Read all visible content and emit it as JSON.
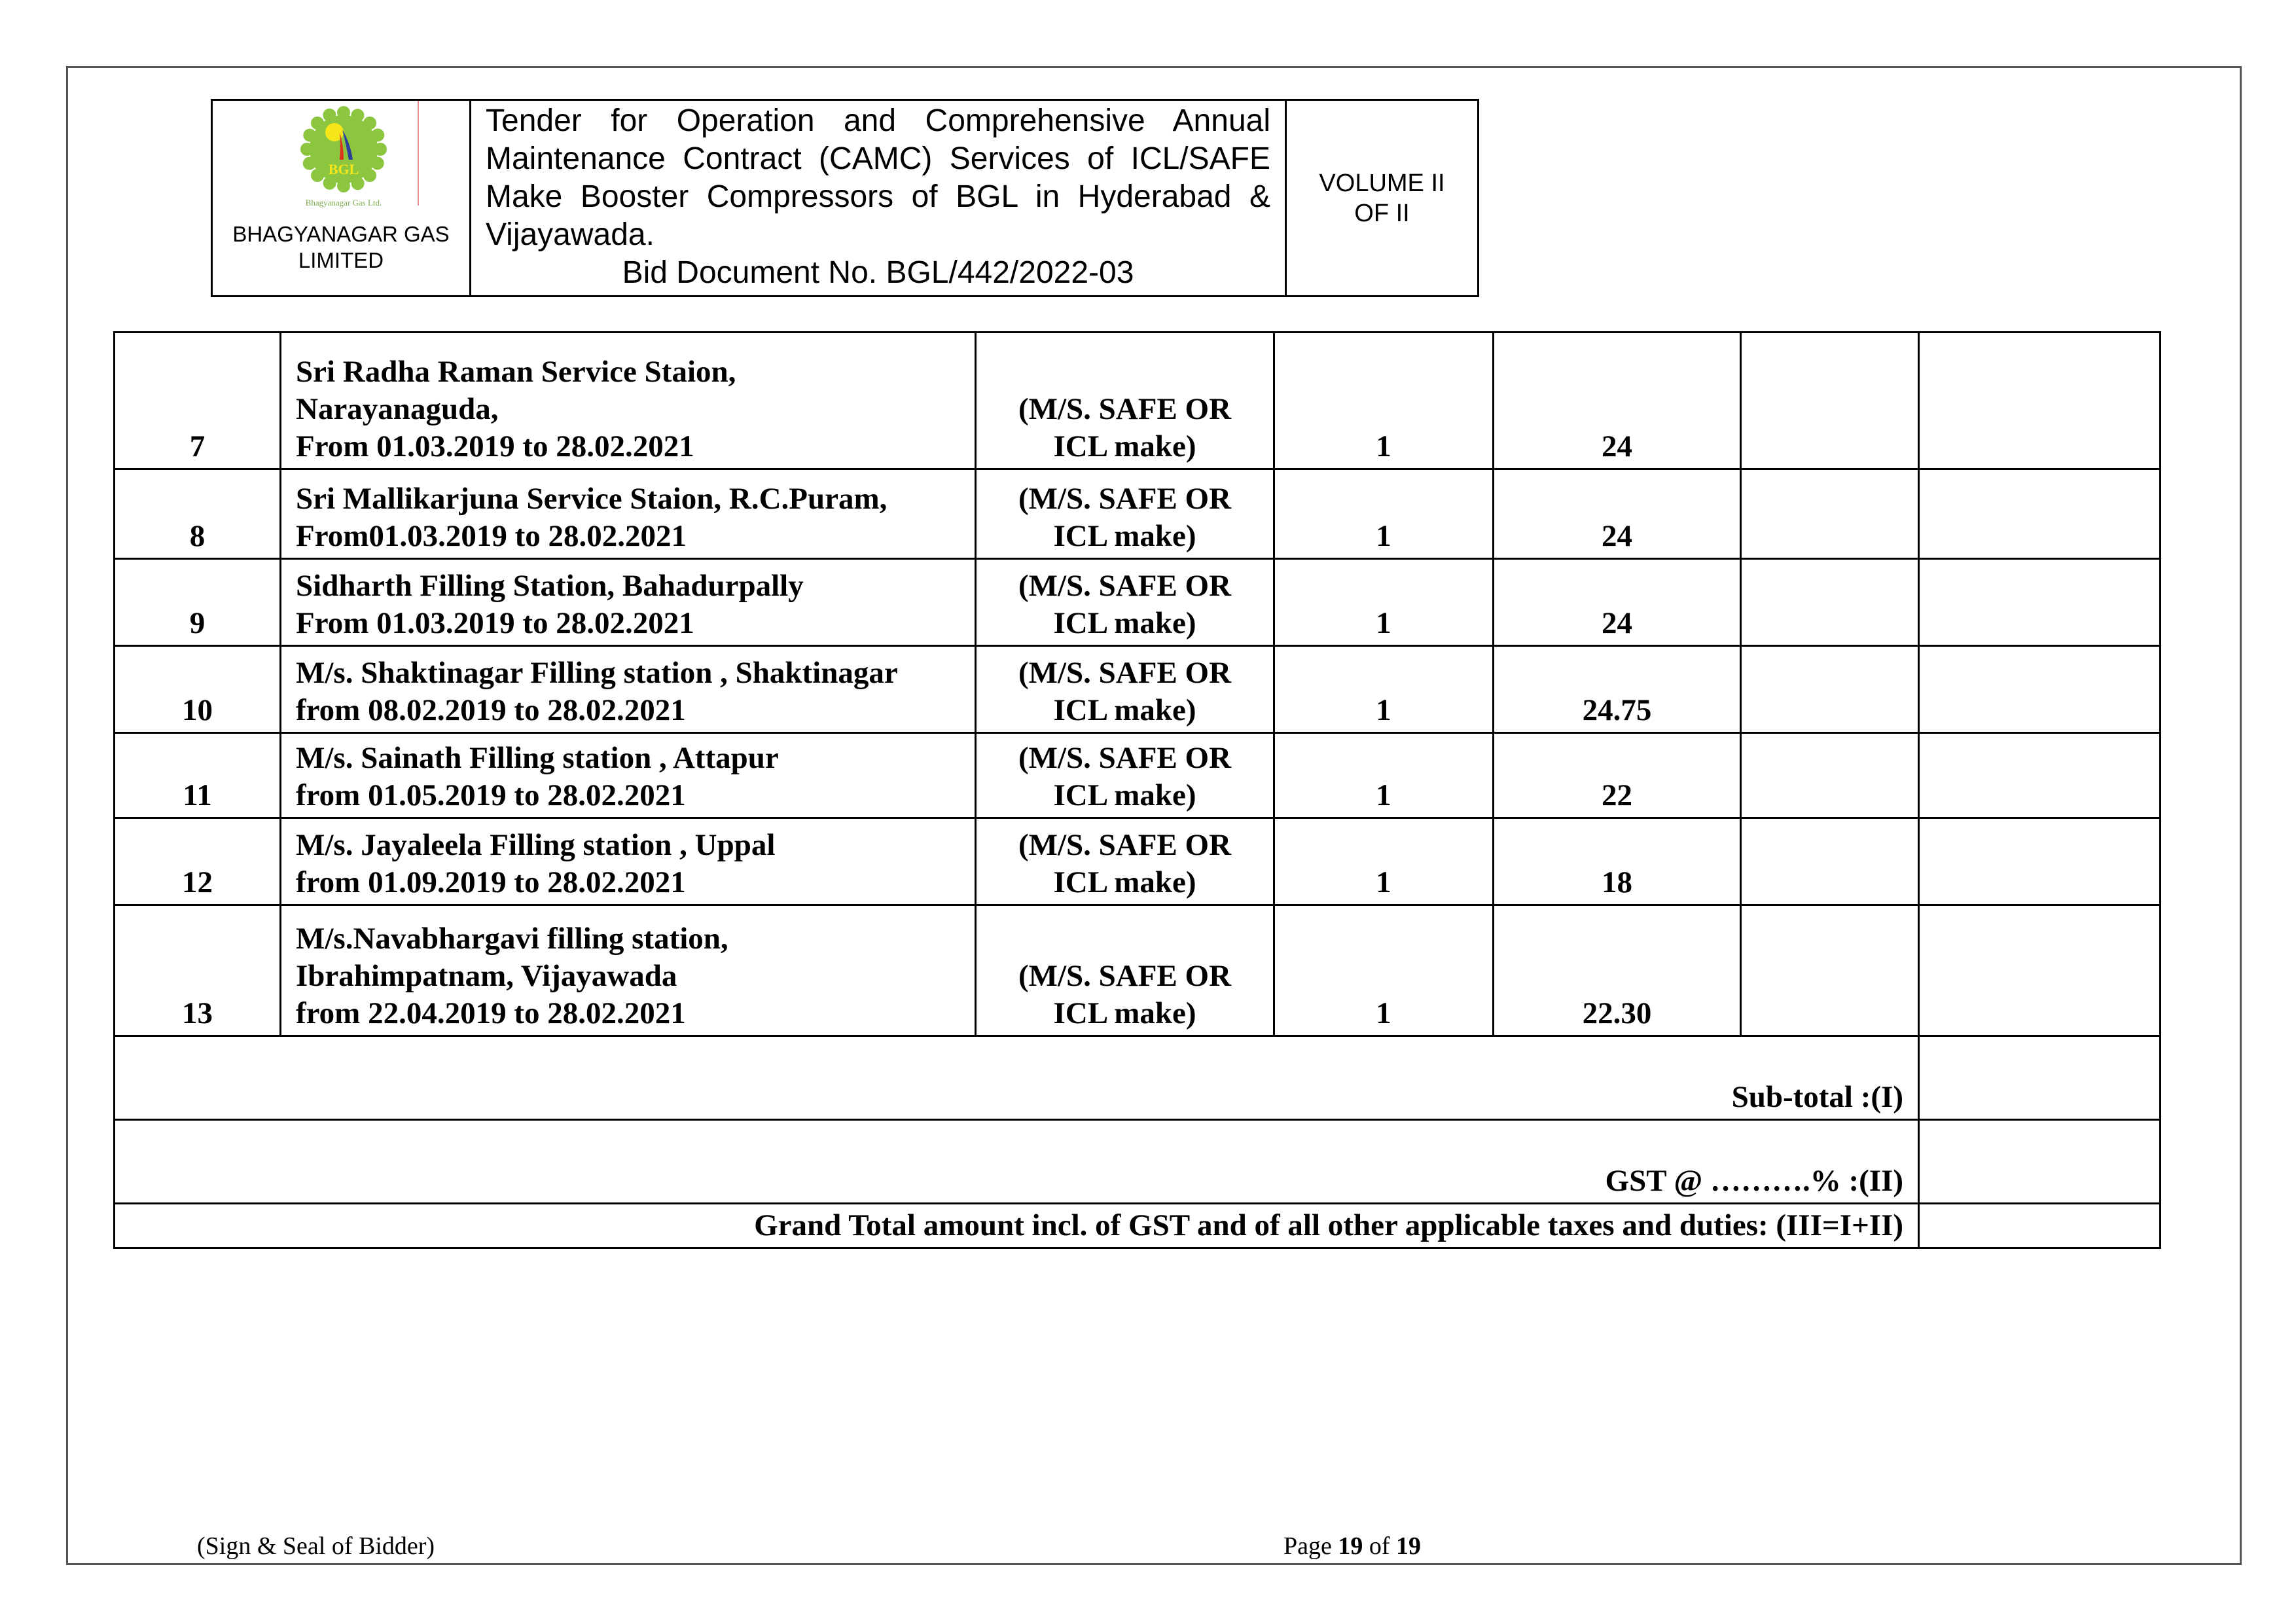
{
  "header": {
    "company": "BHAGYANAGAR GAS LIMITED",
    "logo_text": "BGL",
    "logo_caption": "Bhagyanagar Gas Ltd.",
    "title_lines": [
      "Tender for Operation and Comprehensive Annual",
      "Maintenance Contract (CAMC) Services of ICL/SAFE",
      "Make Booster Compressors of BGL in Hyderabad &",
      "Vijayawada."
    ],
    "bid_document": "Bid Document No. BGL/442/2022-03",
    "volume_line1": "VOLUME II",
    "volume_line2": "OF II"
  },
  "rows": [
    {
      "no": "7",
      "lines": [
        "Sri Radha Raman Service Staion,",
        "Narayanaguda,",
        "From 01.03.2019 to 28.02.2021"
      ],
      "make": [
        "(M/S. SAFE OR",
        "ICL make)"
      ],
      "qty": "1",
      "months": "24"
    },
    {
      "no": "8",
      "lines": [
        "Sri Mallikarjuna Service Staion, R.C.Puram,",
        "From01.03.2019 to 28.02.2021"
      ],
      "make": [
        "(M/S. SAFE OR",
        "ICL make)"
      ],
      "qty": "1",
      "months": "24"
    },
    {
      "no": "9",
      "lines": [
        "Sidharth Filling Station, Bahadurpally",
        "From 01.03.2019 to 28.02.2021"
      ],
      "make": [
        "(M/S. SAFE OR",
        "ICL make)"
      ],
      "qty": "1",
      "months": "24"
    },
    {
      "no": "10",
      "lines": [
        "M/s. Shaktinagar Filling station , Shaktinagar",
        "from 08.02.2019 to 28.02.2021"
      ],
      "make": [
        "(M/S. SAFE OR",
        "ICL make)"
      ],
      "qty": "1",
      "months": "24.75"
    },
    {
      "no": "11",
      "lines": [
        "M/s. Sainath Filling station , Attapur",
        "from 01.05.2019 to 28.02.2021"
      ],
      "make": [
        "(M/S. SAFE OR",
        "ICL make)"
      ],
      "qty": "1",
      "months": "22"
    },
    {
      "no": "12",
      "lines": [
        "M/s. Jayaleela Filling station , Uppal",
        "from 01.09.2019 to 28.02.2021"
      ],
      "make": [
        "(M/S. SAFE OR",
        "ICL make)"
      ],
      "qty": "1",
      "months": "18"
    },
    {
      "no": "13",
      "lines": [
        "M/s.Navabhargavi filling station,",
        "Ibrahimpatnam, Vijayawada",
        "from 22.04.2019 to 28.02.2021"
      ],
      "make": [
        "(M/S. SAFE OR",
        "ICL make)"
      ],
      "qty": "1",
      "months": "22.30"
    }
  ],
  "totals": {
    "subtotal": "Sub-total :(I)",
    "gst": "GST @ ……….% :(II)",
    "grand_total": "Grand Total amount incl. of GST and of all other applicable taxes and duties: (III=I+II)"
  },
  "footer": {
    "sign": "(Sign & Seal of Bidder)",
    "page_prefix": "Page ",
    "page_current": "19",
    "page_mid": " of ",
    "page_total": "19"
  }
}
